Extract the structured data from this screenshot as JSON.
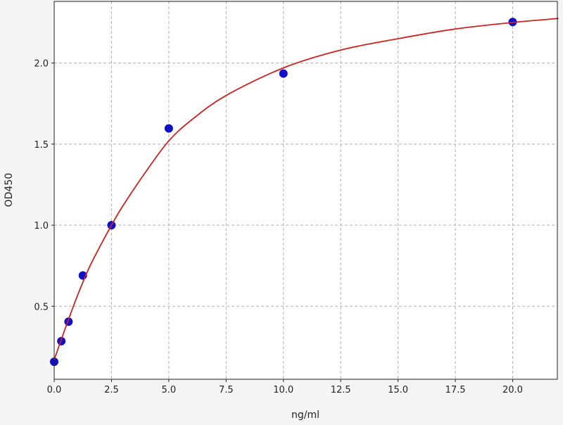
{
  "chart_data": {
    "type": "scatter",
    "title": "",
    "xlabel": "ng/ml",
    "ylabel": "OD450",
    "xlim": [
      0,
      21.95
    ],
    "ylim": [
      0.05,
      2.38
    ],
    "xticks": [
      "0.0",
      "2.5",
      "5.0",
      "7.5",
      "10.0",
      "12.5",
      "15.0",
      "17.5",
      "20.0"
    ],
    "yticks": [
      "0.5",
      "1.0",
      "1.5",
      "2.0"
    ],
    "grid": true,
    "points": {
      "x": [
        0,
        0.3125,
        0.625,
        1.25,
        2.5,
        5,
        10,
        20
      ],
      "y": [
        0.158,
        0.285,
        0.405,
        0.69,
        1.0,
        1.597,
        1.935,
        2.253
      ],
      "color": "#1010c8"
    },
    "fit_curve": {
      "x": [
        0,
        0.25,
        0.5,
        1,
        1.5,
        2,
        2.5,
        3,
        4,
        5,
        6,
        7.5,
        10,
        12.5,
        15,
        17.5,
        20,
        22
      ],
      "y": [
        0.17,
        0.27,
        0.37,
        0.56,
        0.73,
        0.87,
        1.0,
        1.12,
        1.33,
        1.52,
        1.65,
        1.8,
        1.97,
        2.08,
        2.15,
        2.21,
        2.25,
        2.275
      ],
      "color": "#cc2222"
    }
  }
}
